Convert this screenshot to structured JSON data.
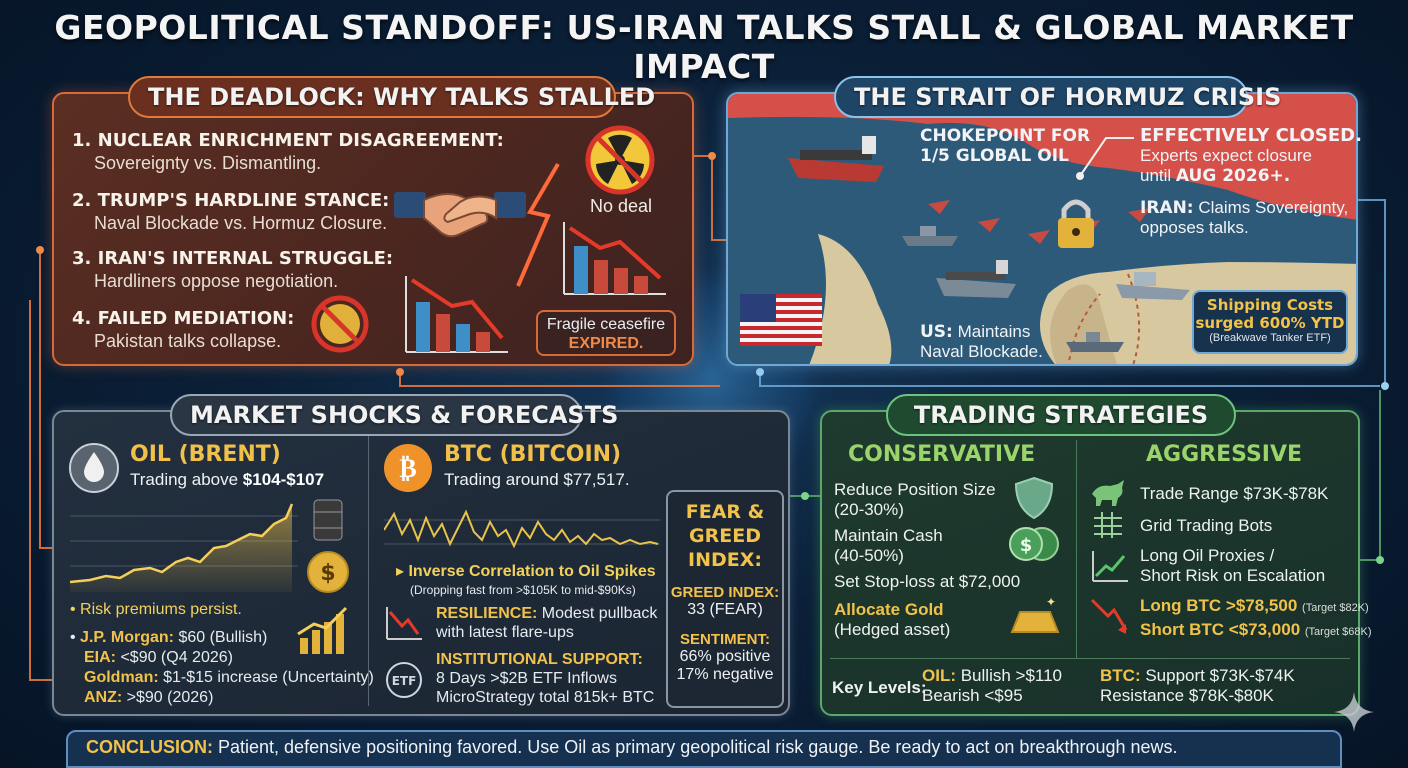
{
  "title": "GEOPOLITICAL STANDOFF: US-IRAN TALKS STALL & GLOBAL MARKET IMPACT",
  "deadlock": {
    "header": "THE DEADLOCK: WHY TALKS STALLED",
    "items": [
      {
        "head": "1. NUCLEAR ENRICHMENT DISAGREEMENT:",
        "sub": "Sovereignty vs. Dismantling."
      },
      {
        "head": "2. TRUMP'S HARDLINE STANCE:",
        "sub": "Naval Blockade vs. Hormuz Closure."
      },
      {
        "head": "3. IRAN'S INTERNAL STRUGGLE:",
        "sub": "Hardliners oppose negotiation."
      },
      {
        "head": "4. FAILED MEDIATION:",
        "sub": "Pakistan talks collapse."
      }
    ],
    "no_deal": "No deal",
    "ceasefire_line": "Fragile ceasefire",
    "ceasefire_status": "EXPIRED."
  },
  "hormuz": {
    "header": "THE STRAIT OF HORMUZ CRISIS",
    "chokepoint_1": "CHOKEPOINT FOR",
    "chokepoint_2": "1/5 GLOBAL OIL",
    "closed_title": "EFFECTIVELY CLOSED.",
    "closed_line1": "Experts expect closure",
    "closed_line2_prefix": "until ",
    "closed_line2_date": "AUG 2026+.",
    "iran_label": "IRAN:",
    "iran_line1": " Claims Sovereignty,",
    "iran_line2": "opposes talks.",
    "us_label": "US:",
    "us_line1": " Maintains",
    "us_line2": "Naval Blockade.",
    "ship_title": "Shipping Costs",
    "ship_value": "surged 600% YTD",
    "ship_source": "(Breakwave Tanker ETF)"
  },
  "market": {
    "header": "MARKET SHOCKS & FORECASTS",
    "oil": {
      "title": "OIL (BRENT)",
      "sub_prefix": "Trading above ",
      "sub_value": "$104-$107",
      "risk": "Risk premiums persist.",
      "forecasts": [
        {
          "name": "J.P. Morgan:",
          "value": " $60 (Bullish)"
        },
        {
          "name": "EIA:",
          "value": " <$90 (Q4 2026)"
        },
        {
          "name": "Goldman:",
          "value": " $1-$15 increase (Uncertainty)"
        },
        {
          "name": "ANZ:",
          "value": " >$90 (2026)"
        }
      ]
    },
    "btc": {
      "title": "BTC (BITCOIN)",
      "sub_prefix": "Trading around ",
      "sub_value": "$77,517.",
      "inverse": "Inverse Correlation to Oil Spikes",
      "inverse_sub": "(Dropping fast from >$105K to mid-$90Ks)",
      "resilience_label": "RESILIENCE:",
      "resilience_1": " Modest pullback",
      "resilience_2": "with latest flare-ups",
      "inst_label": "INSTITUTIONAL SUPPORT:",
      "inst_1": "8 Days >$2B ETF Inflows",
      "inst_2": "MicroStrategy total 815k+ BTC",
      "etf_icon_text": "ETF"
    },
    "fear_greed": {
      "title_1": "FEAR &",
      "title_2": "GREED",
      "title_3": "INDEX:",
      "index_label": "GREED INDEX:",
      "index_value": "33 (FEAR)",
      "sentiment_label": "SENTIMENT:",
      "positive": "66% positive",
      "negative": "17% negative"
    }
  },
  "trading": {
    "header": "TRADING STRATEGIES",
    "conservative": {
      "title": "CONSERVATIVE",
      "items": [
        {
          "l1": "Reduce Position Size",
          "l2": "(20-30%)"
        },
        {
          "l1": "Maintain Cash",
          "l2": "(40-50%)"
        },
        {
          "l1": "Set Stop-loss at $72,000"
        },
        {
          "l1": "Allocate Gold",
          "l2": "(Hedged asset)"
        }
      ]
    },
    "aggressive": {
      "title": "AGGRESSIVE",
      "range": "Trade Range $73K-$78K",
      "grid": "Grid Trading Bots",
      "proxies_1": "Long Oil Proxies /",
      "proxies_2": "Short Risk on Escalation",
      "long_btc": "Long BTC >$78,500",
      "long_target": "(Target $82K)",
      "short_btc": "Short BTC <$73,000",
      "short_target": "(Target $68K)"
    },
    "key_levels": {
      "label": "Key Levels:",
      "oil_label": "OIL:",
      "oil_bull": " Bullish >$110",
      "oil_bear": "Bearish <$95",
      "btc_label": "BTC:",
      "btc_support": " Support $73K-$74K",
      "btc_resistance": "Resistance $78K-$80K"
    }
  },
  "conclusion": {
    "label": "CONCLUSION:",
    "text": " Patient, defensive positioning favored. Use Oil as primary geopolitical risk gauge. Be ready to act on breakthrough news."
  },
  "colors": {
    "deadlock_border": "#d86a3a",
    "hormuz_border": "#6ea8d8",
    "trading_border": "#5aa86a",
    "gold": "#f1c24a"
  }
}
